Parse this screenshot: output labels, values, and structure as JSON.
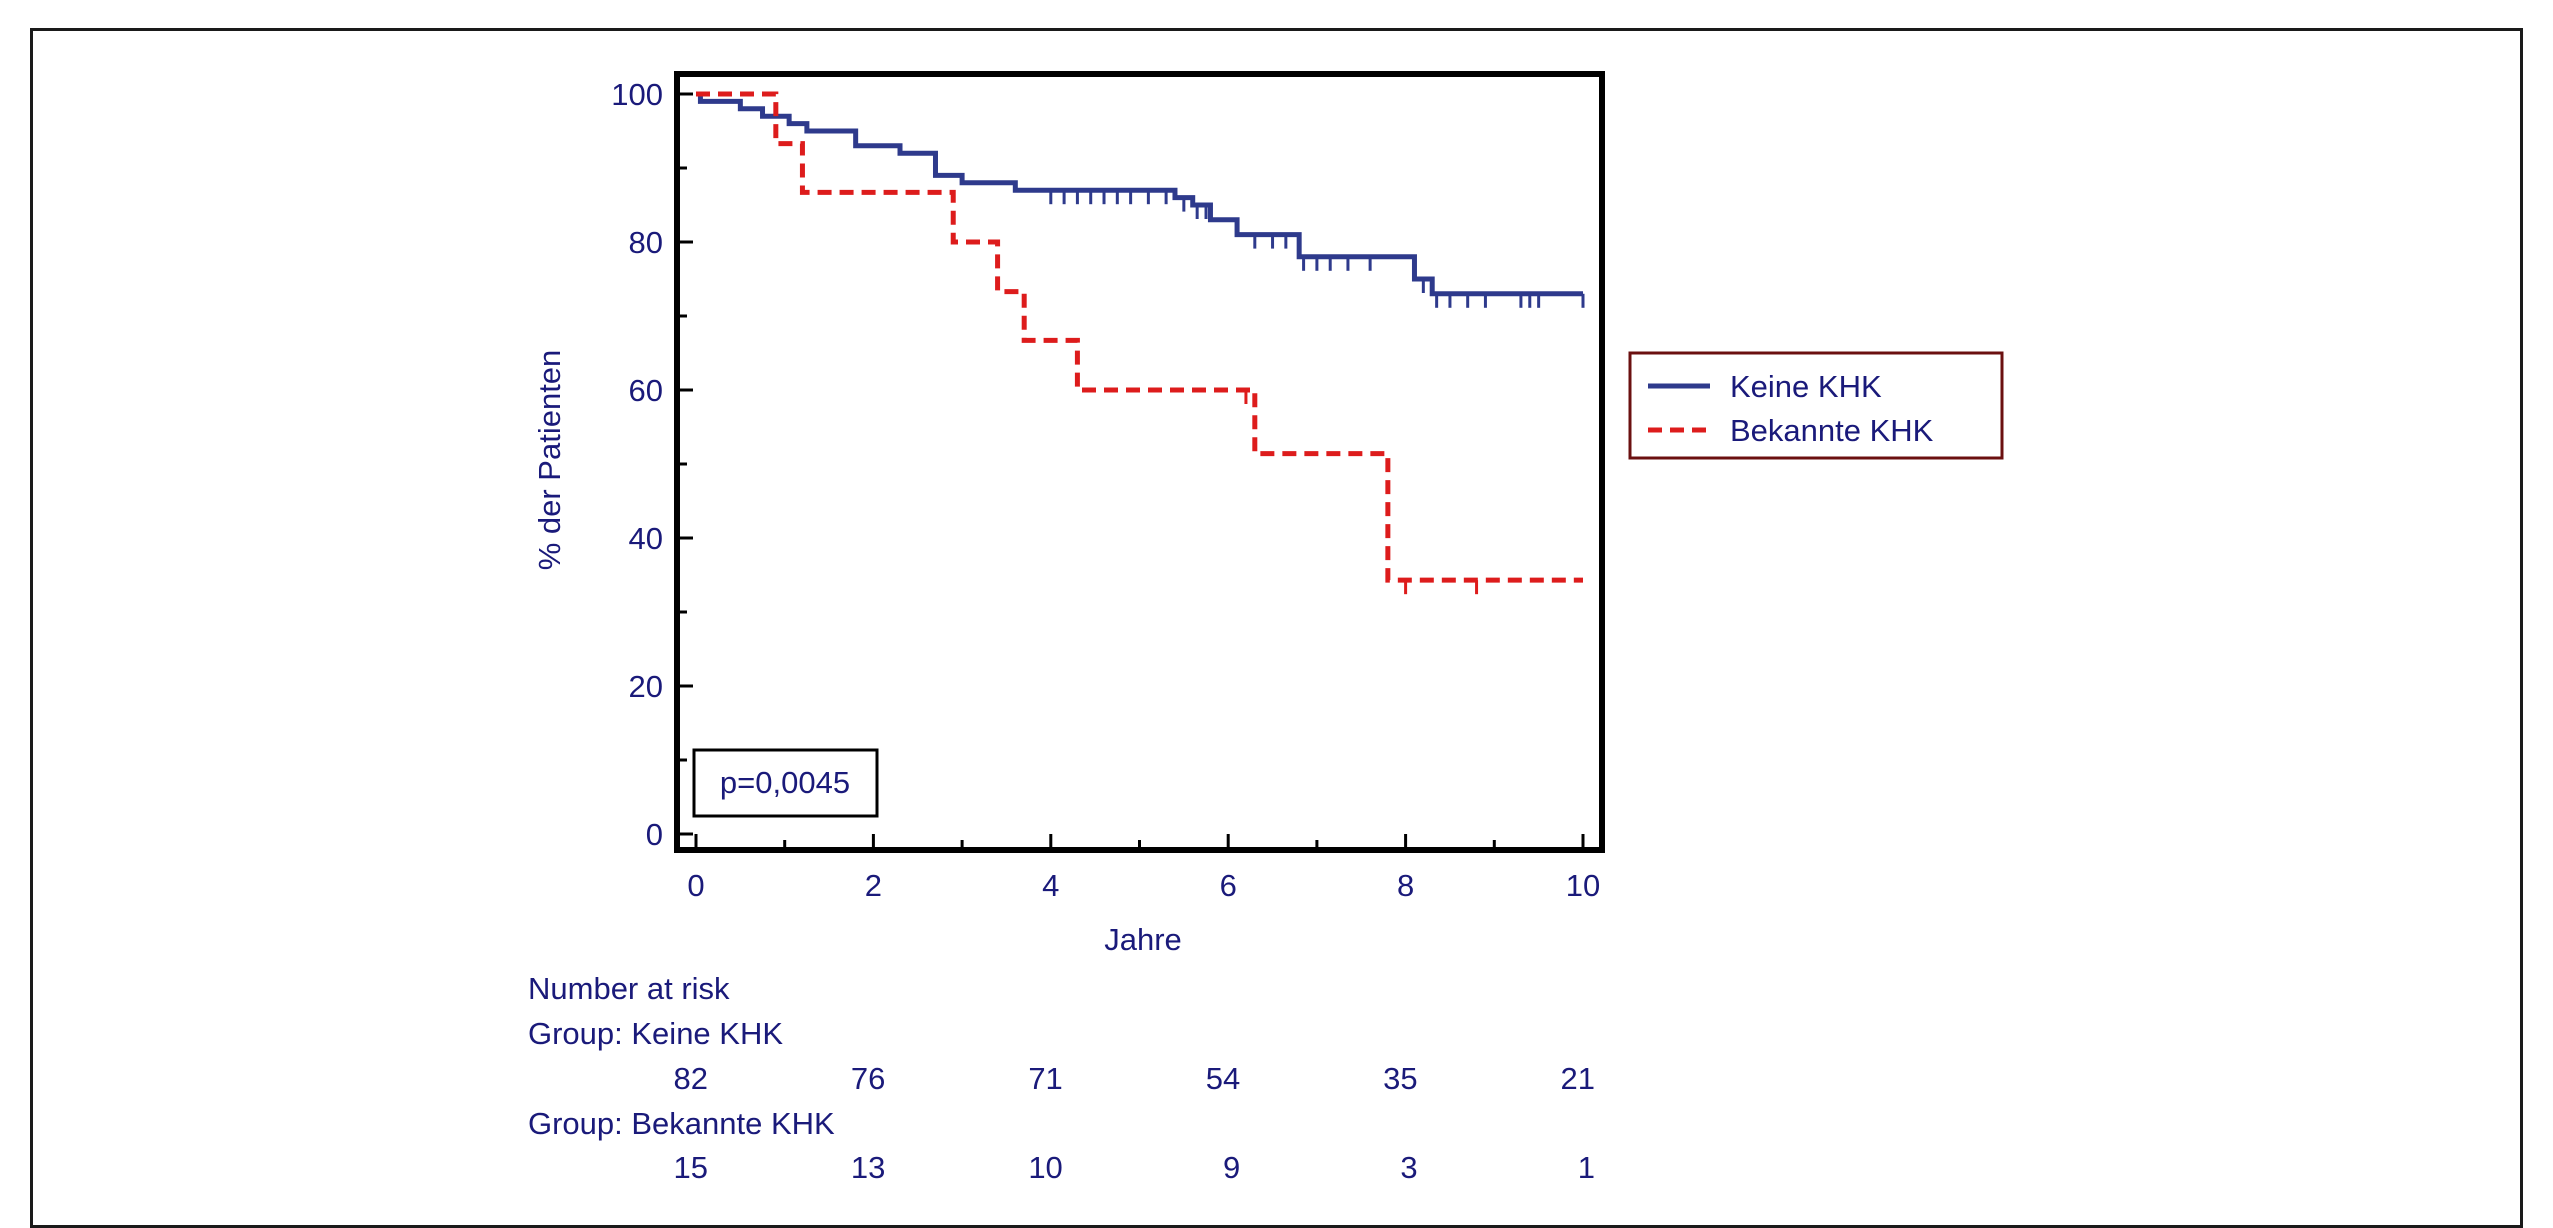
{
  "chart_data": {
    "type": "line",
    "subtype": "kaplan-meier",
    "title": "",
    "xlabel": "Jahre",
    "ylabel": "% der Patienten",
    "xlim": [
      0,
      10
    ],
    "ylim": [
      0,
      100
    ],
    "x_ticks": [
      0,
      2,
      4,
      6,
      8,
      10
    ],
    "y_ticks": [
      0,
      20,
      40,
      60,
      80,
      100
    ],
    "grid": false,
    "legend_placement": "right",
    "annotation": "p=0,0045",
    "series": [
      {
        "name": "Keine KHK",
        "color": "#2e3a8c",
        "dash": "solid",
        "steps": [
          [
            0,
            100
          ],
          [
            0.05,
            99
          ],
          [
            0.5,
            98
          ],
          [
            0.75,
            97
          ],
          [
            1.05,
            96
          ],
          [
            1.25,
            95
          ],
          [
            1.8,
            93
          ],
          [
            2.3,
            92
          ],
          [
            2.7,
            89
          ],
          [
            3.0,
            88
          ],
          [
            3.6,
            87
          ],
          [
            5.4,
            86
          ],
          [
            5.6,
            85
          ],
          [
            5.8,
            83
          ],
          [
            6.1,
            81
          ],
          [
            6.8,
            78
          ],
          [
            8.1,
            75
          ],
          [
            8.3,
            73
          ],
          [
            10,
            73
          ]
        ],
        "censored": [
          4.0,
          4.15,
          4.3,
          4.45,
          4.6,
          4.75,
          4.9,
          5.1,
          5.3,
          5.5,
          5.65,
          5.75,
          6.3,
          6.5,
          6.65,
          6.85,
          7.0,
          7.15,
          7.35,
          7.6,
          8.2,
          8.35,
          8.5,
          8.7,
          8.9,
          9.3,
          9.4,
          9.5,
          10.0
        ]
      },
      {
        "name": "Bekannte KHK",
        "color": "#dd1c1c",
        "dash": "dashed",
        "steps": [
          [
            0,
            100
          ],
          [
            0.9,
            93.3
          ],
          [
            1.2,
            86.7
          ],
          [
            2.9,
            80
          ],
          [
            3.4,
            73.3
          ],
          [
            3.7,
            66.7
          ],
          [
            4.3,
            60
          ],
          [
            6.2,
            60
          ],
          [
            6.3,
            51.4
          ],
          [
            7.8,
            34.3
          ],
          [
            10,
            34.3
          ]
        ],
        "censored": [
          6.2,
          8.0,
          8.8
        ]
      }
    ],
    "risk_table": {
      "heading": "Number at risk",
      "times": [
        0,
        2,
        4,
        6,
        8,
        10
      ],
      "groups": [
        {
          "label": "Group: Keine KHK",
          "counts": [
            "82",
            "76",
            "71",
            "54",
            "35",
            "21"
          ]
        },
        {
          "label": "Group: Bekannte KHK",
          "counts": [
            "15",
            "13",
            "10",
            "9",
            "3",
            "1"
          ]
        }
      ]
    }
  }
}
